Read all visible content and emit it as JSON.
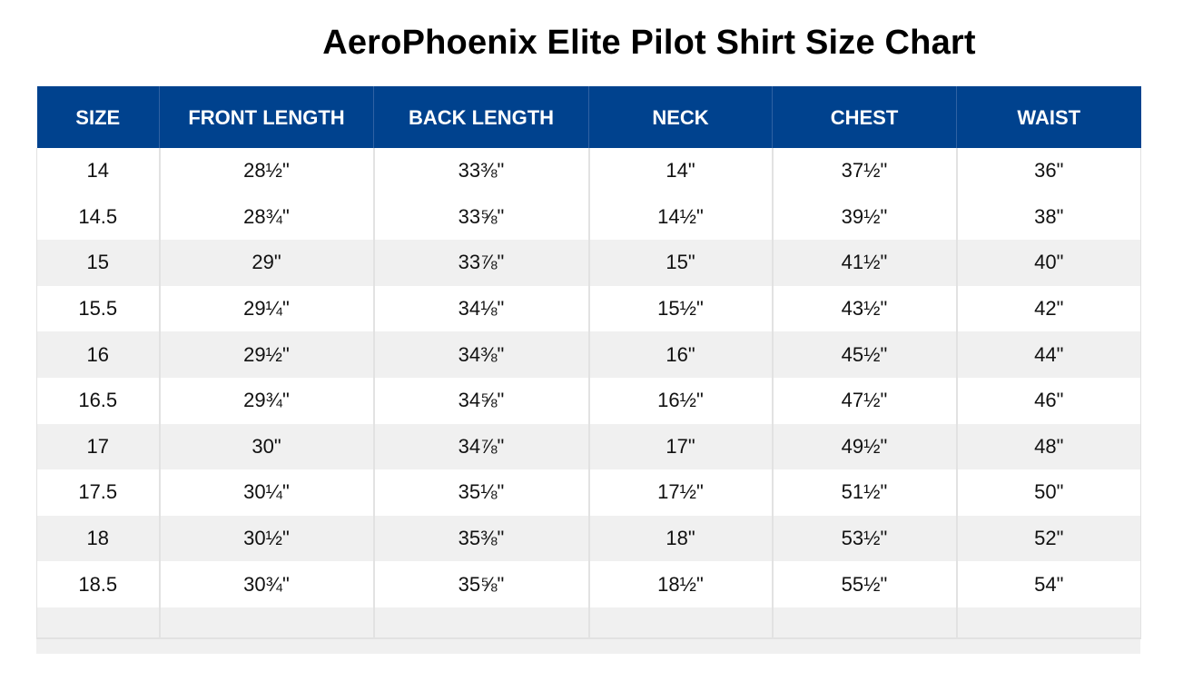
{
  "title": "AeroPhoenix Elite Pilot Shirt Size Chart",
  "colors": {
    "header_bg": "#00428e",
    "header_text": "#ffffff",
    "row_shade": "#f0f0f0",
    "row_plain": "#ffffff"
  },
  "table": {
    "headers": [
      "SIZE",
      "FRONT LENGTH",
      "BACK LENGTH",
      "NECK",
      "CHEST",
      "WAIST"
    ],
    "rows": [
      [
        "14",
        "28½\"",
        "33⅜\"",
        "14\"",
        "37½\"",
        "36\""
      ],
      [
        "14.5",
        "28¾\"",
        "33⅝\"",
        "14½\"",
        "39½\"",
        "38\""
      ],
      [
        "15",
        "29\"",
        "33⅞\"",
        "15\"",
        "41½\"",
        "40\""
      ],
      [
        "15.5",
        "29¼\"",
        "34⅛\"",
        "15½\"",
        "43½\"",
        "42\""
      ],
      [
        "16",
        "29½\"",
        "34⅜\"",
        "16\"",
        "45½\"",
        "44\""
      ],
      [
        "16.5",
        "29¾\"",
        "34⅝\"",
        "16½\"",
        "47½\"",
        "46\""
      ],
      [
        "17",
        "30\"",
        "34⅞\"",
        "17\"",
        "49½\"",
        "48\""
      ],
      [
        "17.5",
        "30¼\"",
        "35⅛\"",
        "17½\"",
        "51½\"",
        "50\""
      ],
      [
        "18",
        "30½\"",
        "35⅜\"",
        "18\"",
        "53½\"",
        "52\""
      ],
      [
        "18.5",
        "30¾\"",
        "35⅝\"",
        "18½\"",
        "55½\"",
        "54\""
      ]
    ]
  }
}
